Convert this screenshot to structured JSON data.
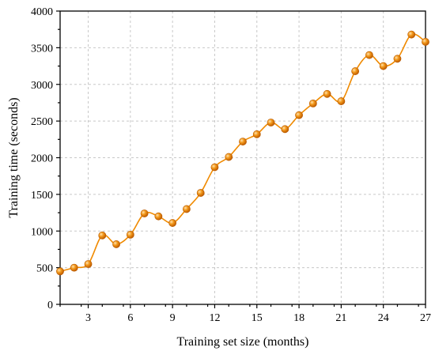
{
  "chart_data": {
    "type": "line",
    "title": "",
    "xlabel": "Training set size (months)",
    "ylabel": "Training time (seconds)",
    "xlim": [
      1,
      27
    ],
    "ylim": [
      0,
      4000
    ],
    "xticks": [
      3,
      6,
      9,
      12,
      15,
      18,
      21,
      24,
      27
    ],
    "yticks": [
      0,
      500,
      1000,
      1500,
      2000,
      2500,
      3000,
      3500,
      4000
    ],
    "grid": true,
    "legend": "none",
    "series": [
      {
        "color": "#F08A00",
        "style": "smoothed line with sphere markers",
        "x": [
          1,
          2,
          3,
          4,
          5,
          6,
          7,
          8,
          9,
          10,
          11,
          12,
          13,
          14,
          15,
          16,
          17,
          18,
          19,
          20,
          21,
          22,
          23,
          24,
          25,
          26,
          27
        ],
        "y": [
          450,
          500,
          550,
          940,
          820,
          950,
          1240,
          1200,
          1110,
          1300,
          1520,
          1870,
          2010,
          2220,
          2320,
          2480,
          2390,
          2580,
          2740,
          2870,
          2770,
          3180,
          3400,
          3250,
          3350,
          3680,
          3580
        ]
      }
    ]
  }
}
